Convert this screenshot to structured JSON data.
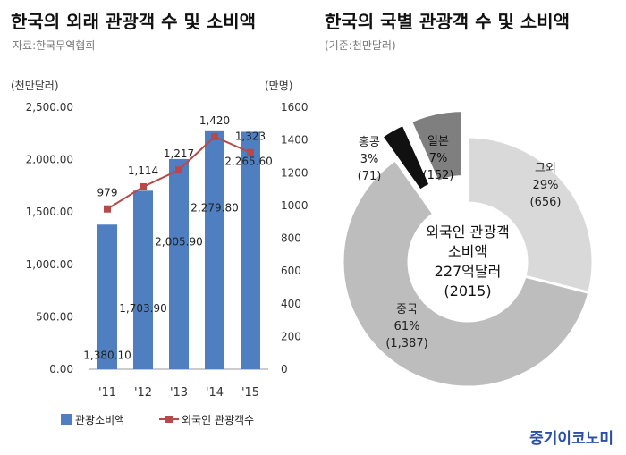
{
  "left": {
    "title": "한국의 외래 관광객 수 및 소비액",
    "subtitle": "자료:한국무역협회"
  },
  "right": {
    "title": "한국의 국별 관광객 수 및 소비액",
    "subtitle": "(기준:천만달러)"
  },
  "brand": "중기이코노미",
  "chart_data": [
    {
      "type": "bar",
      "categories": [
        "'11",
        "'12",
        "'13",
        "'14",
        "'15"
      ],
      "y_left_unit": "(천만달러)",
      "y_right_unit": "(만명)",
      "ylim": [
        0,
        2500
      ],
      "y2lim": [
        0,
        1600
      ],
      "yticks": [
        "0.00",
        "500.00",
        "1,000.00",
        "1,500.00",
        "2,000.00",
        "2,500.00"
      ],
      "y2ticks": [
        "0",
        "200",
        "400",
        "600",
        "800",
        "1000",
        "1200",
        "1400",
        "1600"
      ],
      "series": [
        {
          "name": "관광소비액",
          "kind": "bar",
          "axis": "left",
          "color": "#4f7fc0",
          "values": [
            1380.1,
            1703.9,
            2005.9,
            2279.8,
            2265.6
          ],
          "labels": [
            "1,380.10",
            "1,703.90",
            "2,005.90",
            "2,279.80",
            "2,265.60"
          ]
        },
        {
          "name": "외국인 관광객수",
          "kind": "line",
          "axis": "right",
          "color": "#b64a4a",
          "values": [
            979,
            1114,
            1217,
            1420,
            1323
          ],
          "labels": [
            "979",
            "1,114",
            "1,217",
            "1,420",
            "1,323"
          ]
        }
      ]
    },
    {
      "type": "pie",
      "center_label": [
        "외국인 관광객",
        "소비액",
        "227억달러",
        "(2015)"
      ],
      "slices": [
        {
          "name": "그외",
          "percent": "29%",
          "value": 656,
          "value_label": "(656)",
          "color": "#d9d9d9"
        },
        {
          "name": "중국",
          "percent": "61%",
          "value": 1387,
          "value_label": "(1,387)",
          "color": "#bdbdbd"
        },
        {
          "name": "홍콩",
          "percent": "3%",
          "value": 71,
          "value_label": "(71)",
          "color": "#111111"
        },
        {
          "name": "일본",
          "percent": "7%",
          "value": 152,
          "value_label": "(152)",
          "color": "#7f7f7f"
        }
      ]
    }
  ]
}
